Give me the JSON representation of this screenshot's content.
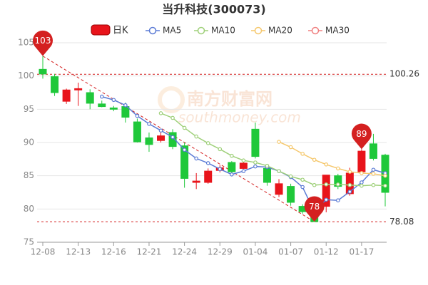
{
  "chart_data": {
    "type": "candlestick",
    "title": "当升科技(300073)",
    "categories": [
      "12-08",
      null,
      null,
      "12-13",
      null,
      null,
      "12-16",
      null,
      null,
      "12-21",
      null,
      null,
      "12-24",
      null,
      null,
      "12-29",
      null,
      null,
      "01-04",
      null,
      null,
      "01-07",
      null,
      null,
      "01-12",
      null,
      null,
      "01-17",
      null,
      null
    ],
    "candle_name": "日K",
    "open": [
      101.0,
      99.9,
      96.2,
      97.9,
      97.5,
      95.8,
      95.2,
      95.4,
      93.1,
      90.7,
      90.3,
      91.5,
      89.5,
      84.0,
      84.0,
      85.8,
      87.0,
      86.1,
      92.0,
      86.1,
      82.2,
      83.4,
      80.4,
      79.0,
      80.4,
      85.0,
      82.3,
      85.6,
      89.8,
      88.1
    ],
    "high": [
      103,
      100.3,
      98.1,
      99.0,
      98.0,
      96.3,
      95.5,
      96.0,
      93.6,
      91.5,
      91.5,
      92.0,
      90.0,
      85.4,
      86.1,
      86.6,
      87.2,
      87.3,
      93.0,
      86.5,
      84.5,
      83.8,
      80.7,
      79.3,
      85.1,
      85.3,
      86.2,
      89,
      91.3,
      88.3
    ],
    "low": [
      99.6,
      97.0,
      95.8,
      95.5,
      95.0,
      95.3,
      94.7,
      93.0,
      90.0,
      88.6,
      90.0,
      89.0,
      83.2,
      83.0,
      83.8,
      85.5,
      85.3,
      86.0,
      87.6,
      83.5,
      81.8,
      80.5,
      79.3,
      78.08,
      79.5,
      83.0,
      82.0,
      85.2,
      87.3,
      80.4
    ],
    "close": [
      100.3,
      97.5,
      97.9,
      98.1,
      95.9,
      95.4,
      95.0,
      93.8,
      90.1,
      89.7,
      91.0,
      89.4,
      84.6,
      84.2,
      85.7,
      86.2,
      85.6,
      86.9,
      87.9,
      84.0,
      83.8,
      81.0,
      79.6,
      78.1,
      85.1,
      83.4,
      85.4,
      88.7,
      87.6,
      82.5
    ],
    "up_color": "#e8141b",
    "down_color": "#1fc83a",
    "series": [
      {
        "name": "MA5",
        "color": "#5b7bd5",
        "values": [
          null,
          null,
          null,
          null,
          null,
          96.9,
          96.4,
          95.6,
          94.0,
          92.8,
          91.8,
          90.8,
          88.9,
          87.6,
          86.9,
          86.0,
          85.2,
          85.7,
          86.4,
          86.3,
          85.7,
          84.8,
          83.3,
          79.6,
          81.4,
          81.3,
          82.6,
          84.0,
          85.9,
          85.4
        ]
      },
      {
        "name": "MA10",
        "color": "#9fd07a",
        "values": [
          null,
          null,
          null,
          null,
          null,
          null,
          null,
          null,
          null,
          null,
          94.4,
          93.7,
          92.2,
          90.9,
          89.9,
          89.0,
          88.0,
          87.3,
          87.0,
          86.5,
          85.7,
          84.9,
          84.4,
          83.6,
          83.7,
          83.7,
          83.6,
          83.5,
          83.6,
          83.5
        ]
      },
      {
        "name": "MA20",
        "color": "#f5c76b",
        "values": [
          null,
          null,
          null,
          null,
          null,
          null,
          null,
          null,
          null,
          null,
          null,
          null,
          null,
          null,
          null,
          null,
          null,
          null,
          null,
          null,
          90.1,
          89.3,
          88.3,
          87.4,
          86.7,
          86.1,
          85.6,
          85.4,
          85.3,
          85.0
        ]
      },
      {
        "name": "MA30",
        "color": "#f08080",
        "values": [
          null,
          null,
          null,
          null,
          null,
          null,
          null,
          null,
          null,
          null,
          null,
          null,
          null,
          null,
          null,
          null,
          null,
          null,
          null,
          null,
          null,
          null,
          null,
          null,
          null,
          null,
          null,
          null,
          null,
          null
        ]
      }
    ],
    "ylim": [
      75,
      105
    ],
    "yticks": [
      75,
      80,
      85,
      90,
      95,
      100,
      105
    ],
    "grid": true,
    "hlines": [
      100.26,
      78.08
    ],
    "hline_color": "#d42020",
    "pins": [
      {
        "index": 0,
        "value": 103,
        "label": "103"
      },
      {
        "index": 23,
        "value": 78.08,
        "label": "78"
      },
      {
        "index": 27,
        "value": 89,
        "label": "89"
      }
    ],
    "watermark": [
      "南方财富网",
      "southmoney.com"
    ]
  }
}
